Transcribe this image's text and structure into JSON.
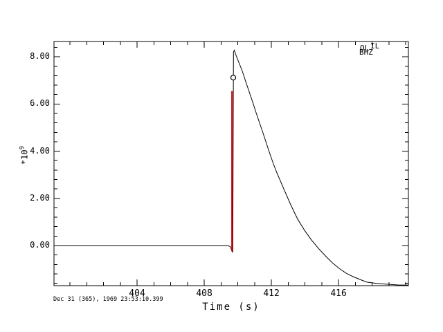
{
  "window": {
    "background": "#ffffff"
  },
  "header": {
    "station_part1": "OL",
    "station_part2": "IL",
    "channel": "BHZ"
  },
  "footer": {
    "reference_time": "Dec 31 (365), 1969 23:53:10.399"
  },
  "chart_data": {
    "type": "line",
    "title": "",
    "xlabel": "Time (s)",
    "ylabel_base": "*10",
    "ylabel_exponent": "9",
    "unit_scale": "1e9",
    "grid": false,
    "xlim": [
      399.05,
      420.16
    ],
    "ylim": [
      -1.7,
      8.65
    ],
    "x_major_ticks": [
      404,
      408,
      412,
      416
    ],
    "x_tick_labels": [
      "404",
      "408",
      "412",
      "416"
    ],
    "x_minor_step": 1,
    "y_major_ticks": [
      0,
      2,
      4,
      6,
      8
    ],
    "y_tick_labels": [
      "0.00",
      "2.00",
      "4.00",
      "6.00",
      "8.00"
    ],
    "y_minor_step": 0.4,
    "line_color": "#000000",
    "frame_color": "#000000",
    "series": [
      {
        "name": "waveform",
        "points": [
          [
            399.05,
            0
          ],
          [
            409.4,
            0
          ],
          [
            409.55,
            -0.05
          ],
          [
            409.65,
            -0.22
          ],
          [
            409.7,
            -0.29
          ],
          [
            409.74,
            8.2
          ],
          [
            409.79,
            8.28
          ],
          [
            409.9,
            8.05
          ],
          [
            410.06,
            7.77
          ],
          [
            410.27,
            7.39
          ],
          [
            410.47,
            6.95
          ],
          [
            410.68,
            6.51
          ],
          [
            410.89,
            6.07
          ],
          [
            411.09,
            5.63
          ],
          [
            411.3,
            5.19
          ],
          [
            411.51,
            4.75
          ],
          [
            411.71,
            4.31
          ],
          [
            411.92,
            3.87
          ],
          [
            412.12,
            3.46
          ],
          [
            412.33,
            3.08
          ],
          [
            412.54,
            2.73
          ],
          [
            412.74,
            2.4
          ],
          [
            413.15,
            1.73
          ],
          [
            413.57,
            1.11
          ],
          [
            413.98,
            0.64
          ],
          [
            414.39,
            0.23
          ],
          [
            414.8,
            -0.12
          ],
          [
            415.22,
            -0.44
          ],
          [
            415.63,
            -0.73
          ],
          [
            416.04,
            -0.97
          ],
          [
            416.45,
            -1.17
          ],
          [
            416.87,
            -1.32
          ],
          [
            417.28,
            -1.44
          ],
          [
            417.69,
            -1.55
          ],
          [
            418.31,
            -1.61
          ],
          [
            418.93,
            -1.64
          ],
          [
            419.55,
            -1.67
          ],
          [
            420.16,
            -1.68
          ]
        ]
      }
    ],
    "pick": {
      "time": 409.65,
      "top": 6.55,
      "bottom": -0.25,
      "color": "#dd0000"
    },
    "marker": {
      "time": 409.73,
      "value": 7.12,
      "symbol": "circle"
    }
  }
}
